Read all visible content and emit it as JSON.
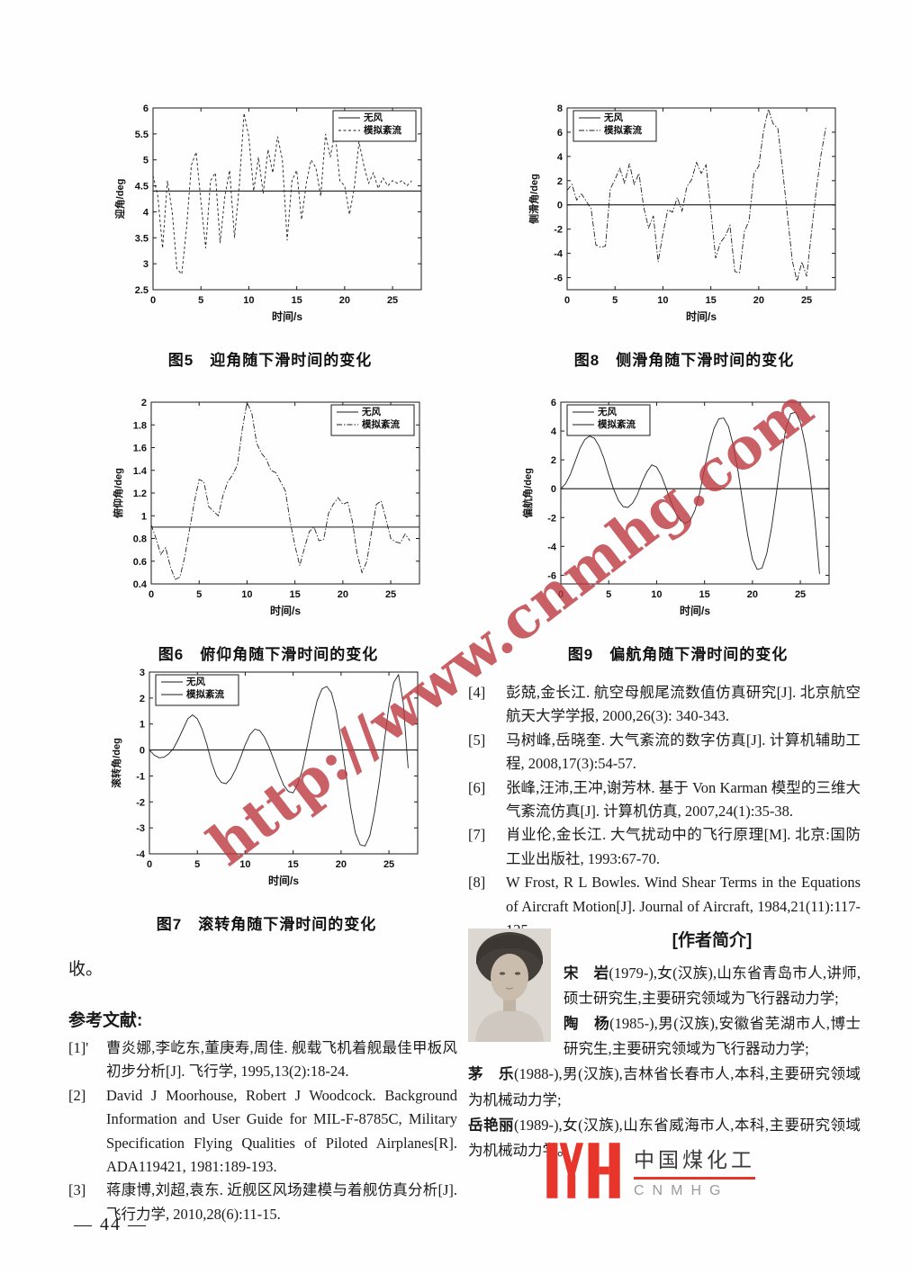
{
  "page": {
    "number": "— 44 —"
  },
  "watermark": {
    "text": "http://www.cnmhg.com",
    "color": "rgba(187,56,62,0.8)"
  },
  "left_column": {
    "paragraph": "收。",
    "references_heading": "参考文献:",
    "references": [
      {
        "marker": "[1]'",
        "text": "曹炎娜,李屹东,董庚寿,周佳. 舰载飞机着舰最佳甲板风初步分析[J]. 飞行学, 1995,13(2):18-24."
      },
      {
        "marker": "[2]",
        "text": "David J Moorhouse, Robert J Woodcock. Background Information and User Guide for MIL-F-8785C, Military Specification Flying Qualities of Piloted Airplanes[R]. ADA119421, 1981:189-193."
      },
      {
        "marker": "[3]",
        "text": "蒋康博,刘超,袁东. 近舰区风场建模与着舰仿真分析[J]. 飞行力学, 2010,28(6):11-15."
      }
    ]
  },
  "right_column": {
    "references": [
      {
        "marker": "[4]",
        "text": "彭兢,金长江. 航空母舰尾流数值仿真研究[J]. 北京航空航天大学学报, 2000,26(3): 340-343."
      },
      {
        "marker": "[5]",
        "text": "马树峰,岳晓奎. 大气紊流的数字仿真[J]. 计算机辅助工程, 2008,17(3):54-57."
      },
      {
        "marker": "[6]",
        "text": "张峰,汪沛,王冲,谢芳林. 基于 Von Karman 模型的三维大气紊流仿真[J]. 计算机仿真, 2007,24(1):35-38."
      },
      {
        "marker": "[7]",
        "text": "肖业伦,金长江. 大气扰动中的飞行原理[M]. 北京:国防工业出版社, 1993:67-70."
      },
      {
        "marker": "[8]",
        "text": "W Frost, R L Bowles. Wind Shear Terms in the Equations of Aircraft Motion[J]. Journal of Aircraft, 1984,21(11):117-125."
      }
    ]
  },
  "authors": {
    "heading": "[作者简介]",
    "bios": [
      {
        "name": "宋　岩",
        "text": "(1979-),女(汉族),山东省青岛市人,讲师,硕士研究生,主要研究领域为飞行器动力学;"
      },
      {
        "name": "陶　杨",
        "text": "(1985-),男(汉族),安徽省芜湖市人,博士研究生,主要研究领域为飞行器动力学;"
      },
      {
        "name": "茅　乐",
        "text": "(1988-),男(汉族),吉林省长春市人,本科,主要研究领域为机械动力学;"
      },
      {
        "name": "岳艳丽",
        "text": "(1989-),女(汉族),山东省威海市人,本科,主要研究领域为机械动力学。"
      }
    ]
  },
  "logo": {
    "cn": "中国煤化工",
    "en": "CNMHG",
    "accent": "#e8352c"
  },
  "chart_data": [
    {
      "id": "fig5",
      "type": "line",
      "caption": "图5　迎角随下滑时间的变化",
      "xlabel": "时间/s",
      "ylabel": "迎角/deg",
      "xlim": [
        0,
        28
      ],
      "ylim": [
        2.5,
        6
      ],
      "xticks": [
        0,
        5,
        10,
        15,
        20,
        25
      ],
      "yticks": [
        2.5,
        3,
        3.5,
        4,
        4.5,
        5,
        5.5,
        6
      ],
      "legend_pos": "tr",
      "series": [
        {
          "name": "无风",
          "flat": 4.4,
          "dash": ""
        },
        {
          "name": "模拟紊流",
          "dash": "3 2.5",
          "x_start": 0,
          "x_step": 0.5,
          "values": [
            4.7,
            4.3,
            3.3,
            4.6,
            4.0,
            2.9,
            2.8,
            3.7,
            4.9,
            5.15,
            4.2,
            3.3,
            4.6,
            4.75,
            3.4,
            4.3,
            4.8,
            3.5,
            4.5,
            5.9,
            5.45,
            4.4,
            5.05,
            4.35,
            5.2,
            4.75,
            5.45,
            5.0,
            3.45,
            4.6,
            4.8,
            3.85,
            4.55,
            5.0,
            4.85,
            4.3,
            5.5,
            5.05,
            5.55,
            4.6,
            4.5,
            3.95,
            4.45,
            5.35,
            4.9,
            4.55,
            4.75,
            4.45,
            4.65,
            4.5,
            4.6,
            4.55,
            4.6,
            4.5,
            4.6
          ]
        }
      ]
    },
    {
      "id": "fig8",
      "type": "line",
      "caption": "图8　侧滑角随下滑时间的变化",
      "xlabel": "时间/s",
      "ylabel": "侧滑角/deg",
      "xlim": [
        0,
        28
      ],
      "ylim": [
        -7,
        8
      ],
      "xticks": [
        0,
        5,
        10,
        15,
        20,
        25
      ],
      "yticks": [
        -6,
        -4,
        -2,
        0,
        2,
        4,
        6,
        8
      ],
      "legend_pos": "tl",
      "series": [
        {
          "name": "无风",
          "flat": 0,
          "dash": ""
        },
        {
          "name": "模拟紊流",
          "dash": "6 2 1.5 2",
          "x_start": 0,
          "x_step": 0.5,
          "values": [
            1.2,
            1.7,
            0.4,
            0.9,
            0.3,
            -0.3,
            -3.3,
            -3.5,
            -3.4,
            1.3,
            2.1,
            3.0,
            1.8,
            3.4,
            1.7,
            2.6,
            -0.2,
            -1.9,
            -0.9,
            -4.7,
            -2.4,
            -0.4,
            -0.6,
            0.6,
            -0.5,
            1.5,
            2.1,
            3.5,
            2.6,
            3.3,
            -0.4,
            -4.4,
            -3.1,
            -2.6,
            -1.7,
            -5.5,
            -5.6,
            -2.2,
            -1.3,
            2.6,
            3.2,
            6.1,
            7.9,
            6.7,
            6.3,
            2.8,
            -0.9,
            -4.6,
            -6.3,
            -4.7,
            -5.9,
            -2.3,
            1.2,
            4.1,
            6.4
          ]
        }
      ]
    },
    {
      "id": "fig6",
      "type": "line",
      "caption": "图6　俯仰角随下滑时间的变化",
      "xlabel": "时间/s",
      "ylabel": "俯仰角/deg",
      "xlim": [
        0,
        28
      ],
      "ylim": [
        0.4,
        2
      ],
      "xticks": [
        0,
        5,
        10,
        15,
        20,
        25
      ],
      "yticks": [
        0.4,
        0.6,
        0.8,
        1,
        1.2,
        1.4,
        1.6,
        1.8,
        2
      ],
      "legend_pos": "tr",
      "series": [
        {
          "name": "无风",
          "flat": 0.9,
          "dash": ""
        },
        {
          "name": "模拟紊流",
          "dash": "6 2 1.5 2",
          "x_start": 0,
          "x_step": 0.5,
          "values": [
            0.92,
            0.8,
            0.66,
            0.72,
            0.55,
            0.44,
            0.46,
            0.64,
            0.88,
            1.12,
            1.32,
            1.3,
            1.08,
            1.04,
            1.0,
            1.18,
            1.3,
            1.36,
            1.45,
            1.76,
            2.0,
            1.9,
            1.64,
            1.55,
            1.5,
            1.4,
            1.38,
            1.3,
            1.22,
            0.95,
            0.74,
            0.56,
            0.72,
            0.86,
            0.9,
            0.78,
            0.79,
            1.02,
            1.1,
            1.16,
            1.1,
            1.12,
            0.95,
            0.66,
            0.5,
            0.6,
            0.86,
            1.1,
            1.13,
            0.97,
            0.8,
            0.77,
            0.76,
            0.84,
            0.78
          ]
        }
      ]
    },
    {
      "id": "fig9",
      "type": "line",
      "caption": "图9　偏航角随下滑时间的变化",
      "xlabel": "时间/s",
      "ylabel": "偏航角/deg",
      "xlim": [
        0,
        28
      ],
      "ylim": [
        -6.6,
        6
      ],
      "xticks": [
        0,
        5,
        10,
        15,
        20,
        25
      ],
      "yticks": [
        -6,
        -4,
        -2,
        0,
        2,
        4,
        6
      ],
      "legend_pos": "tl",
      "series": [
        {
          "name": "无风",
          "flat": 0,
          "dash": ""
        },
        {
          "name": "模拟紊流",
          "dash": "",
          "x_start": 0,
          "x_step": 0.5,
          "values": [
            0,
            0.35,
            1.0,
            1.9,
            2.8,
            3.4,
            3.65,
            3.5,
            2.95,
            2.1,
            1.0,
            0.0,
            -0.8,
            -1.25,
            -1.3,
            -1.0,
            -0.4,
            0.5,
            1.2,
            1.65,
            1.5,
            0.9,
            0.0,
            -0.9,
            -1.7,
            -2.2,
            -2.4,
            -2.2,
            -1.5,
            -0.3,
            1.4,
            3.0,
            4.2,
            4.85,
            4.9,
            4.3,
            3.0,
            1.2,
            -1.0,
            -3.2,
            -4.9,
            -5.6,
            -5.5,
            -4.5,
            -2.7,
            -0.3,
            2.2,
            4.2,
            5.2,
            5.3,
            4.6,
            3.1,
            1.0,
            -2.0,
            -5.9
          ]
        }
      ]
    },
    {
      "id": "fig7",
      "type": "line",
      "caption": "图7　滚转角随下滑时间的变化",
      "xlabel": "时间/s",
      "ylabel": "滚转角/deg",
      "xlim": [
        0,
        28
      ],
      "ylim": [
        -4,
        3
      ],
      "xticks": [
        0,
        5,
        10,
        15,
        20,
        25
      ],
      "yticks": [
        -4,
        -3,
        -2,
        -1,
        0,
        1,
        2,
        3
      ],
      "legend_pos": "tl",
      "series": [
        {
          "name": "无风",
          "flat": 0,
          "dash": ""
        },
        {
          "name": "模拟紊流",
          "dash": "",
          "x_start": 0,
          "x_step": 0.5,
          "values": [
            0,
            -0.2,
            -0.3,
            -0.28,
            -0.15,
            0.05,
            0.4,
            0.8,
            1.2,
            1.35,
            1.2,
            0.8,
            0.2,
            -0.5,
            -1.0,
            -1.25,
            -1.3,
            -1.1,
            -0.75,
            -0.3,
            0.2,
            0.6,
            0.8,
            0.75,
            0.5,
            0.1,
            -0.4,
            -0.9,
            -1.35,
            -1.6,
            -1.65,
            -1.3,
            -0.7,
            0.2,
            1.1,
            1.9,
            2.35,
            2.45,
            2.2,
            1.5,
            0.4,
            -0.9,
            -2.2,
            -3.2,
            -3.65,
            -3.7,
            -3.3,
            -2.4,
            -1.2,
            0.3,
            1.7,
            2.6,
            2.9,
            1.8,
            -0.7
          ]
        }
      ]
    }
  ]
}
